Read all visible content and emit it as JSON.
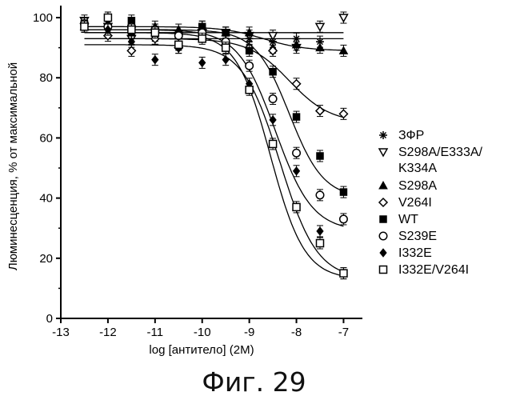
{
  "chart_data": {
    "type": "scatter",
    "title": "",
    "xlabel": "log [антитело] (2M)",
    "ylabel": "Люминесценция, % от максимальной",
    "xlim": [
      -13,
      -6.6
    ],
    "ylim": [
      0,
      104
    ],
    "x_ticks": [
      "-13",
      "-12",
      "-11",
      "-10",
      "-9",
      "-8",
      "-7"
    ],
    "y_ticks": [
      "0",
      "20",
      "40",
      "60",
      "80",
      "100"
    ],
    "grid": false,
    "legend_position": "right",
    "x": [
      -12.5,
      -12,
      -11.5,
      -11,
      -10.5,
      -10,
      -9.5,
      -9,
      -8.5,
      -8,
      -7.5,
      -7
    ],
    "series": [
      {
        "name": "ЗФР",
        "marker": "asterisk",
        "values": [
          97,
          98,
          96,
          93,
          91,
          96,
          92,
          93,
          92,
          93,
          92,
          null
        ],
        "fit": {
          "top": 93,
          "bottom": 93,
          "ec50": -8,
          "hill": 1
        }
      },
      {
        "name": "S298A/E333A/\nK334A",
        "marker": "triangle-down",
        "values": [
          99,
          97,
          93,
          94,
          94,
          95,
          95,
          94,
          94,
          90,
          97,
          100
        ],
        "fit": {
          "top": 95,
          "bottom": 95,
          "ec50": -8,
          "hill": 1
        }
      },
      {
        "name": "S298A",
        "marker": "triangle-up",
        "values": [
          97,
          98,
          95,
          97,
          96,
          97,
          95,
          95,
          90,
          91,
          90,
          89
        ],
        "fit": {
          "top": 97,
          "bottom": 89,
          "ec50": -8.7,
          "hill": 1
        }
      },
      {
        "name": "V264I",
        "marker": "diamond-open",
        "values": [
          98,
          94,
          89,
          93,
          90,
          96,
          91,
          90,
          89,
          78,
          69,
          68
        ],
        "fit": {
          "top": 93,
          "bottom": 65,
          "ec50": -8.15,
          "hill": 1
        }
      },
      {
        "name": "WT",
        "marker": "square-filled",
        "values": [
          98,
          100,
          99,
          96,
          94,
          97,
          95,
          89,
          82,
          67,
          54,
          42
        ],
        "fit": {
          "top": 96,
          "bottom": 40,
          "ec50": -8.15,
          "hill": 1.2
        }
      },
      {
        "name": "S239E",
        "marker": "circle-open",
        "values": [
          98,
          97,
          97,
          96,
          94,
          95,
          92,
          84,
          73,
          55,
          41,
          33
        ],
        "fit": {
          "top": 96,
          "bottom": 29,
          "ec50": -8.45,
          "hill": 1.1
        }
      },
      {
        "name": "I332E",
        "marker": "diamond-filled",
        "values": [
          97,
          96,
          92,
          86,
          90,
          85,
          86,
          78,
          66,
          49,
          29,
          15
        ],
        "fit": {
          "top": 91,
          "bottom": 13,
          "ec50": -8.35,
          "hill": 1.1
        }
      },
      {
        "name": "I332E/V264I",
        "marker": "square-open",
        "values": [
          97,
          100,
          96,
          95,
          91,
          93,
          90,
          76,
          58,
          37,
          25,
          15
        ],
        "fit": {
          "top": 95,
          "bottom": 13,
          "ec50": -8.55,
          "hill": 1.2
        }
      }
    ]
  },
  "figure": {
    "caption": "Фиг. 29"
  }
}
